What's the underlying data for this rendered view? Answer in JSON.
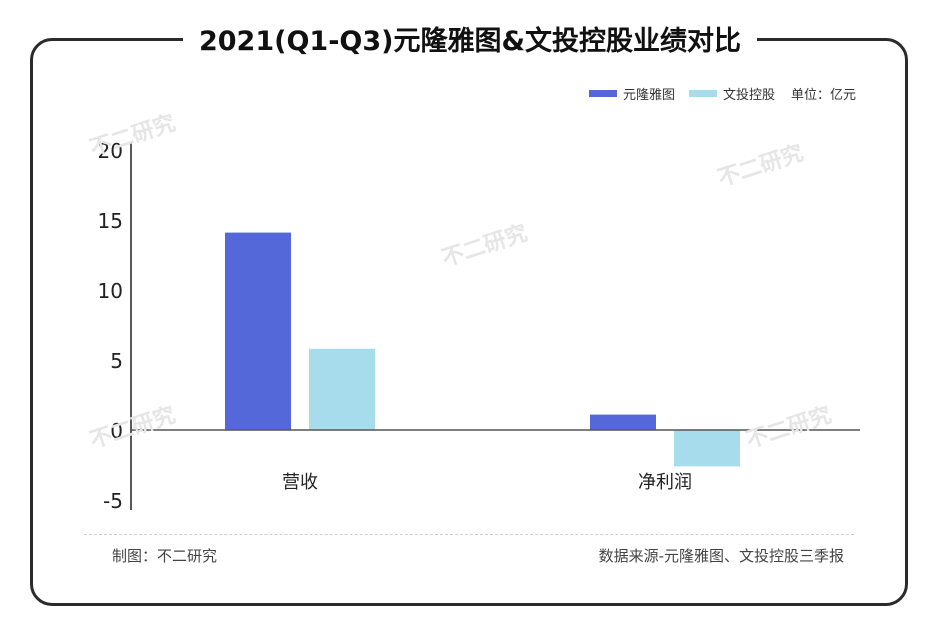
{
  "title": "2021(Q1-Q3)元隆雅图&文投控股业绩对比",
  "legend": {
    "series": [
      "元隆雅图",
      "文投控股"
    ],
    "unit": "单位：亿元"
  },
  "footer": {
    "left": "制图：不二研究",
    "right": "数据来源-元隆雅图、文投控股三季报"
  },
  "watermark": "不二研究",
  "colors": {
    "series1": "#5468d9",
    "series2": "#a6dcec",
    "axis": "#222222"
  },
  "chart_data": {
    "type": "bar",
    "title": "2021(Q1-Q3)元隆雅图&文投控股业绩对比",
    "categories": [
      "营收",
      "净利润"
    ],
    "series": [
      {
        "name": "元隆雅图",
        "values": [
          14.1,
          1.1
        ]
      },
      {
        "name": "文投控股",
        "values": [
          5.8,
          -2.6
        ]
      }
    ],
    "yticks": [
      20,
      15,
      10,
      5,
      0,
      -5
    ],
    "ylim": [
      -5,
      20
    ],
    "xlabel": "",
    "ylabel": "",
    "grid": false,
    "legend_position": "top-right"
  }
}
